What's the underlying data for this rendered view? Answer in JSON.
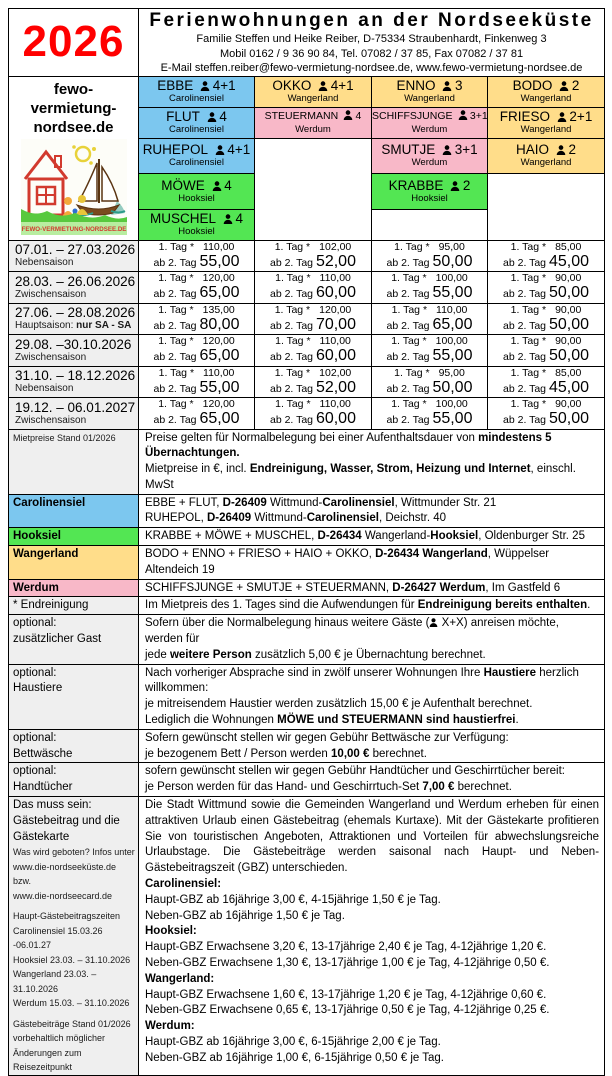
{
  "header": {
    "year": "2026",
    "title": "Ferienwohnungen an der Nordseeküste",
    "line1": "Familie Steffen und Heike Reiber, D-75334 Straubenhardt, Finkenweg 3",
    "line2": "Mobil 0162 / 9 36 90 84, Tel. 07082 / 37 85, Fax 07082 / 37 81",
    "line3": "E-Mail steffen.reiber@fewo-vermietung-nordsee.de, www.fewo-vermietung-nordsee.de"
  },
  "brand": {
    "name_lines": [
      "fewo-",
      "vermietung-",
      "nordsee.de"
    ],
    "logo_text": "FEWO-VERMIETUNG-NORDSEE.DE"
  },
  "colors": {
    "carolinensiel": "#7cc7ef",
    "hooksiel": "#53e653",
    "wangerland": "#ffdd8a",
    "werdum": "#f8b8c8",
    "label_bg": "#efefef",
    "year_red": "#ff0000"
  },
  "apartments": {
    "rows": [
      [
        {
          "name": "EBBE",
          "cap": "4+1",
          "loc": "Carolinensiel",
          "color": "carolinensiel"
        },
        {
          "name": "OKKO",
          "cap": "4+1",
          "loc": "Wangerland",
          "color": "wangerland"
        },
        {
          "name": "ENNO",
          "cap": "3",
          "loc": "Wangerland",
          "color": "wangerland"
        },
        {
          "name": "BODO",
          "cap": "2",
          "loc": "Wangerland",
          "color": "wangerland"
        }
      ],
      [
        {
          "name": "FLUT",
          "cap": "4",
          "loc": "Carolinensiel",
          "color": "carolinensiel"
        },
        {
          "name": "STEUERMANN",
          "cap": "4",
          "loc": "Werdum",
          "color": "werdum",
          "small": true
        },
        {
          "name": "SCHIFFSJUNGE",
          "cap": "3+1",
          "loc": "Werdum",
          "color": "werdum",
          "small": true
        },
        {
          "name": "FRIESO",
          "cap": "2+1",
          "loc": "Wangerland",
          "color": "wangerland"
        }
      ],
      [
        {
          "name": "RUHEPOL",
          "cap": "4+1",
          "loc": "Carolinensiel",
          "color": "carolinensiel"
        },
        {
          "empty": true,
          "rowspan": 3
        },
        {
          "name": "SMUTJE",
          "cap": "3+1",
          "loc": "Werdum",
          "color": "werdum"
        },
        {
          "name": "HAIO",
          "cap": "2",
          "loc": "Wangerland",
          "color": "wangerland"
        }
      ],
      [
        {
          "name": "MÖWE",
          "cap": "4",
          "loc": "Hooksiel",
          "color": "hooksiel"
        },
        {
          "name": "KRABBE",
          "cap": "2",
          "loc": "Hooksiel",
          "color": "hooksiel"
        },
        {
          "empty": true,
          "rowspan": 2
        }
      ],
      [
        {
          "name": "MUSCHEL",
          "cap": "4",
          "loc": "Hooksiel",
          "color": "hooksiel"
        },
        {
          "empty": true
        }
      ]
    ]
  },
  "price_table": {
    "first_day_label": "1. Tag *",
    "from_label": "ab 2. Tag",
    "rows": [
      {
        "dates": "07.01. – 27.03.2026",
        "season": [
          {
            "t": "Nebensaison"
          }
        ],
        "prices": [
          [
            "110,00",
            "55,00"
          ],
          [
            "102,00",
            "52,00"
          ],
          [
            "95,00",
            "50,00"
          ],
          [
            "85,00",
            "45,00"
          ]
        ]
      },
      {
        "dates": "28.03. – 26.06.2026",
        "season": [
          {
            "t": "Zwischensaison"
          }
        ],
        "prices": [
          [
            "120,00",
            "65,00"
          ],
          [
            "110,00",
            "60,00"
          ],
          [
            "100,00",
            "55,00"
          ],
          [
            "90,00",
            "50,00"
          ]
        ]
      },
      {
        "dates": "27.06. – 28.08.2026",
        "season": [
          {
            "t": "Hauptsaison: "
          },
          {
            "t": "nur SA - SA",
            "b": true
          }
        ],
        "prices": [
          [
            "135,00",
            "80,00"
          ],
          [
            "120,00",
            "70,00"
          ],
          [
            "110,00",
            "65,00"
          ],
          [
            "90,00",
            "50,00"
          ]
        ]
      },
      {
        "dates": "29.08. –30.10.2026",
        "season": [
          {
            "t": "Zwischensaison"
          }
        ],
        "prices": [
          [
            "120,00",
            "65,00"
          ],
          [
            "110,00",
            "60,00"
          ],
          [
            "100,00",
            "55,00"
          ],
          [
            "90,00",
            "50,00"
          ]
        ]
      },
      {
        "dates": "31.10. – 18.12.2026",
        "season": [
          {
            "t": "Nebensaison"
          }
        ],
        "prices": [
          [
            "110,00",
            "55,00"
          ],
          [
            "102,00",
            "52,00"
          ],
          [
            "95,00",
            "50,00"
          ],
          [
            "85,00",
            "45,00"
          ]
        ]
      },
      {
        "dates": "19.12. – 06.01.2027",
        "season": [
          {
            "t": "Zwischensaison"
          }
        ],
        "prices": [
          [
            "120,00",
            "65,00"
          ],
          [
            "110,00",
            "60,00"
          ],
          [
            "100,00",
            "55,00"
          ],
          [
            "90,00",
            "50,00"
          ]
        ]
      }
    ]
  },
  "info_rows": [
    {
      "name": "mietpreise-info",
      "label_small": [
        "Mietpreise Stand 01/2026"
      ],
      "content": [
        [
          "Preise gelten für Normalbelegung bei einer Aufenthaltsdauer von ",
          {
            "b": "mindestens 5 Übernachtungen."
          }
        ],
        [
          "Mietpreise in €, incl. ",
          {
            "b": "Endreinigung, Wasser, Strom, Heizung und Internet"
          },
          ", einschl. MwSt"
        ]
      ]
    },
    {
      "name": "location-carolinensiel",
      "label": [
        "Carolinensiel"
      ],
      "label_color": "carolinensiel",
      "content": [
        [
          "EBBE + FLUT, ",
          {
            "b": "D-26409"
          },
          " Wittmund-",
          {
            "b": "Carolinensiel"
          },
          ", Wittmunder Str. 21"
        ],
        [
          "RUHEPOL, ",
          {
            "b": "D-26409"
          },
          " Wittmund-",
          {
            "b": "Carolinensiel"
          },
          ", Deichstr. 40"
        ]
      ]
    },
    {
      "name": "location-hooksiel",
      "label": [
        "Hooksiel"
      ],
      "label_color": "hooksiel",
      "content": [
        [
          "KRABBE + MÖWE + MUSCHEL, ",
          {
            "b": "D-26434"
          },
          " Wangerland-",
          {
            "b": "Hooksiel"
          },
          ", Oldenburger Str. 25"
        ]
      ]
    },
    {
      "name": "location-wangerland",
      "label": [
        "Wangerland"
      ],
      "label_color": "wangerland",
      "content": [
        [
          "BODO + ENNO + FRIESO + HAIO + OKKO, ",
          {
            "b": "D-26434 Wangerland"
          },
          ", Wüppelser Altendeich 19"
        ]
      ]
    },
    {
      "name": "location-werdum",
      "label": [
        "Werdum"
      ],
      "label_color": "werdum",
      "content": [
        [
          "SCHIFFSJUNGE + SMUTJE + STEUERMANN, ",
          {
            "b": "D-26427 Werdum"
          },
          ", Im Gastfeld 6"
        ]
      ]
    },
    {
      "name": "endreinigung",
      "label": [
        "* Endreinigung"
      ],
      "content": [
        [
          "Im Mietpreis des 1. Tages sind die Aufwendungen für ",
          {
            "b": "Endreinigung bereits enthalten"
          },
          "."
        ]
      ]
    },
    {
      "name": "zusaetzlicher-gast",
      "label": [
        "optional:",
        "zusätzlicher Gast"
      ],
      "content": [
        [
          "Sofern über die Normalbelegung hinaus weitere Gäste (",
          {
            "icon": "person"
          },
          " X+X) anreisen möchte, werden für"
        ],
        [
          "jede ",
          {
            "b": "weitere Person"
          },
          " zusätzlich 5,00 € je Übernachtung berechnet."
        ]
      ]
    },
    {
      "name": "haustiere",
      "label": [
        "optional:",
        "Haustiere"
      ],
      "content": [
        [
          "Nach vorheriger Absprache sind in zwölf unserer Wohnungen Ihre ",
          {
            "b": "Haustiere"
          },
          " herzlich willkommen:"
        ],
        [
          "je mitreisendem Haustier werden zusätzlich 15,00 € je Aufenthalt berechnet."
        ],
        [
          "Lediglich die Wohnungen ",
          {
            "b": "MÖWE und STEUERMANN sind haustierfrei"
          },
          "."
        ]
      ]
    },
    {
      "name": "bettwaesche",
      "label": [
        "optional:",
        "Bettwäsche"
      ],
      "content": [
        [
          "Sofern gewünscht stellen wir gegen Gebühr Bettwäsche zur Verfügung:"
        ],
        [
          "je bezogenem Bett / Person werden ",
          {
            "b": "10,00 €"
          },
          " berechnet."
        ]
      ]
    },
    {
      "name": "handtuecher",
      "label": [
        "optional:",
        "Handtücher"
      ],
      "content": [
        [
          "sofern gewünscht stellen wir gegen Gebühr Handtücher und Geschirrtücher bereit:"
        ],
        [
          "je Person werden für das Hand- und Geschirrtuch-Set ",
          {
            "b": "7,00 €"
          },
          " berechnet."
        ]
      ]
    },
    {
      "name": "gaestebeitrag",
      "label": [
        "Das muss sein:",
        "Gästebeitrag und die",
        "Gästekarte"
      ],
      "label_small": [
        "Was wird geboten? Infos unter",
        "www.die-nordseeküste.de bzw.",
        "www.die-nordseecard.de",
        "",
        "Haupt-Gästebeitragszeiten",
        "Carolinensiel 15.03.26 -06.01.27",
        "Hooksiel 23.03. – 31.10.2026",
        "Wangerland 23.03. – 31.10.2026",
        "Werdum 15.03. – 31.10.2026",
        "",
        "Gästebeiträge Stand 01/2026",
        "vorbehaltlich möglicher",
        "Änderungen zum Reisezeitpunkt"
      ],
      "content": [
        {
          "justify": true,
          "segs": [
            "Die Stadt Wittmund sowie die Gemeinden Wangerland und Werdum erheben für einen attraktiven Urlaub einen Gästebeitrag (ehemals Kurtaxe). Mit der Gästekarte profitieren Sie von touristischen Angeboten, Attraktionen und Vorteilen für abwechslungsreiche Urlaubstage. Die Gästebeiträge werden saisonal nach Haupt- und Neben-Gästebeitragszeit (GBZ) unterschieden."
          ]
        },
        [
          {
            "b": "Carolinensiel:"
          }
        ],
        [
          "Haupt-GBZ ab 16jährige 3,00 €, 4-15jährige 1,50 € je Tag."
        ],
        [
          "Neben-GBZ ab 16jährige 1,50 € je Tag."
        ],
        [
          {
            "b": "Hooksiel:"
          }
        ],
        [
          "Haupt-GBZ Erwachsene 3,20 €, 13-17jährige 2,40 € je Tag, 4-12jährige 1,20 €."
        ],
        [
          "Neben-GBZ Erwachsene 1,30 €, 13-17jährige 1,00 € je Tag, 4-12jährige 0,50 €."
        ],
        [
          {
            "b": "Wangerland:"
          }
        ],
        [
          "Haupt-GBZ Erwachsene 1,60 €, 13-17jährige 1,20 € je Tag, 4-12jährige 0,60 €."
        ],
        [
          "Neben-GBZ Erwachsene 0,65 €, 13-17jährige 0,50 € je Tag, 4-12jährige 0,25 €."
        ],
        [
          {
            "b": "Werdum:"
          }
        ],
        [
          "Haupt-GBZ ab 16jährige 3,00 €, 6-15jährige 2,00 € je Tag."
        ],
        [
          "Neben-GBZ ab 16jährige 1,00 €, 6-15jährige 0,50 € je Tag."
        ]
      ]
    }
  ]
}
